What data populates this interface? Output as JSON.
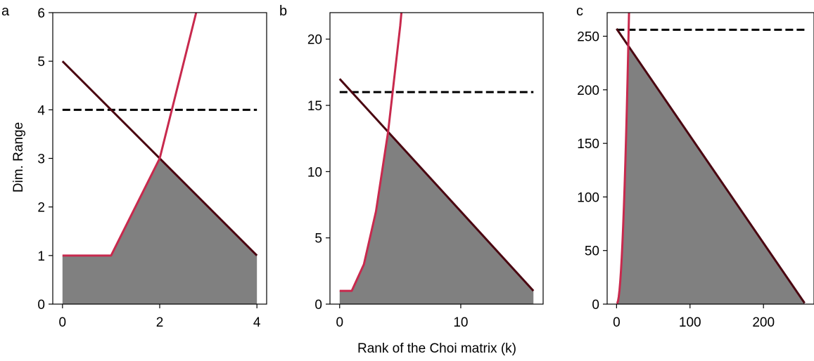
{
  "xlabel": "Rank of the Choi matrix (k)",
  "ylabel": "Dim. Range",
  "colors": {
    "upper_bound": "#4a0510",
    "lower_bound": "#c8294d",
    "dashed": "#000000",
    "fill": "#808080"
  },
  "chart_data": [
    {
      "type": "line",
      "panel": "a",
      "xlim": [
        -0.2,
        4.2
      ],
      "ylim": [
        0,
        6
      ],
      "xticks": [
        0,
        2,
        4
      ],
      "yticks": [
        0,
        1,
        2,
        3,
        4,
        5,
        6
      ],
      "series": [
        {
          "role": "dashed",
          "x": [
            0,
            4
          ],
          "y": [
            4,
            4
          ]
        },
        {
          "role": "upper_bound",
          "x": [
            0,
            4
          ],
          "y": [
            5,
            1
          ]
        },
        {
          "role": "lower_bound",
          "x": [
            0,
            1,
            2,
            3
          ],
          "y": [
            1,
            1,
            3,
            7
          ]
        }
      ]
    },
    {
      "type": "line",
      "panel": "b",
      "xlim": [
        -0.8,
        16.8
      ],
      "ylim": [
        0,
        22
      ],
      "xticks": [
        0,
        10
      ],
      "yticks": [
        0,
        5,
        10,
        15,
        20
      ],
      "series": [
        {
          "role": "dashed",
          "x": [
            0,
            16
          ],
          "y": [
            16,
            16
          ]
        },
        {
          "role": "upper_bound",
          "x": [
            0,
            16
          ],
          "y": [
            17,
            1
          ]
        },
        {
          "role": "lower_bound",
          "x": [
            0,
            1,
            2,
            3,
            4,
            5,
            6
          ],
          "y": [
            1,
            1,
            3,
            7,
            13,
            21,
            31
          ]
        }
      ]
    },
    {
      "type": "line",
      "panel": "c",
      "xlim": [
        -12.8,
        268.8
      ],
      "ylim": [
        0,
        272
      ],
      "xticks": [
        0,
        100,
        200
      ],
      "yticks": [
        0,
        50,
        100,
        150,
        200,
        250
      ],
      "series": [
        {
          "role": "dashed",
          "x": [
            0,
            256
          ],
          "y": [
            256,
            256
          ]
        },
        {
          "role": "upper_bound",
          "x": [
            0,
            256
          ],
          "y": [
            257,
            1
          ]
        },
        {
          "role": "lower_bound",
          "x": [
            0,
            1,
            2,
            3,
            4,
            5,
            6,
            7,
            8,
            9,
            10,
            11,
            12,
            13,
            14,
            15,
            16,
            17,
            18
          ],
          "y": [
            1,
            1,
            3,
            7,
            13,
            21,
            31,
            43,
            57,
            73,
            91,
            111,
            133,
            157,
            183,
            211,
            241,
            273,
            307
          ]
        }
      ]
    }
  ]
}
